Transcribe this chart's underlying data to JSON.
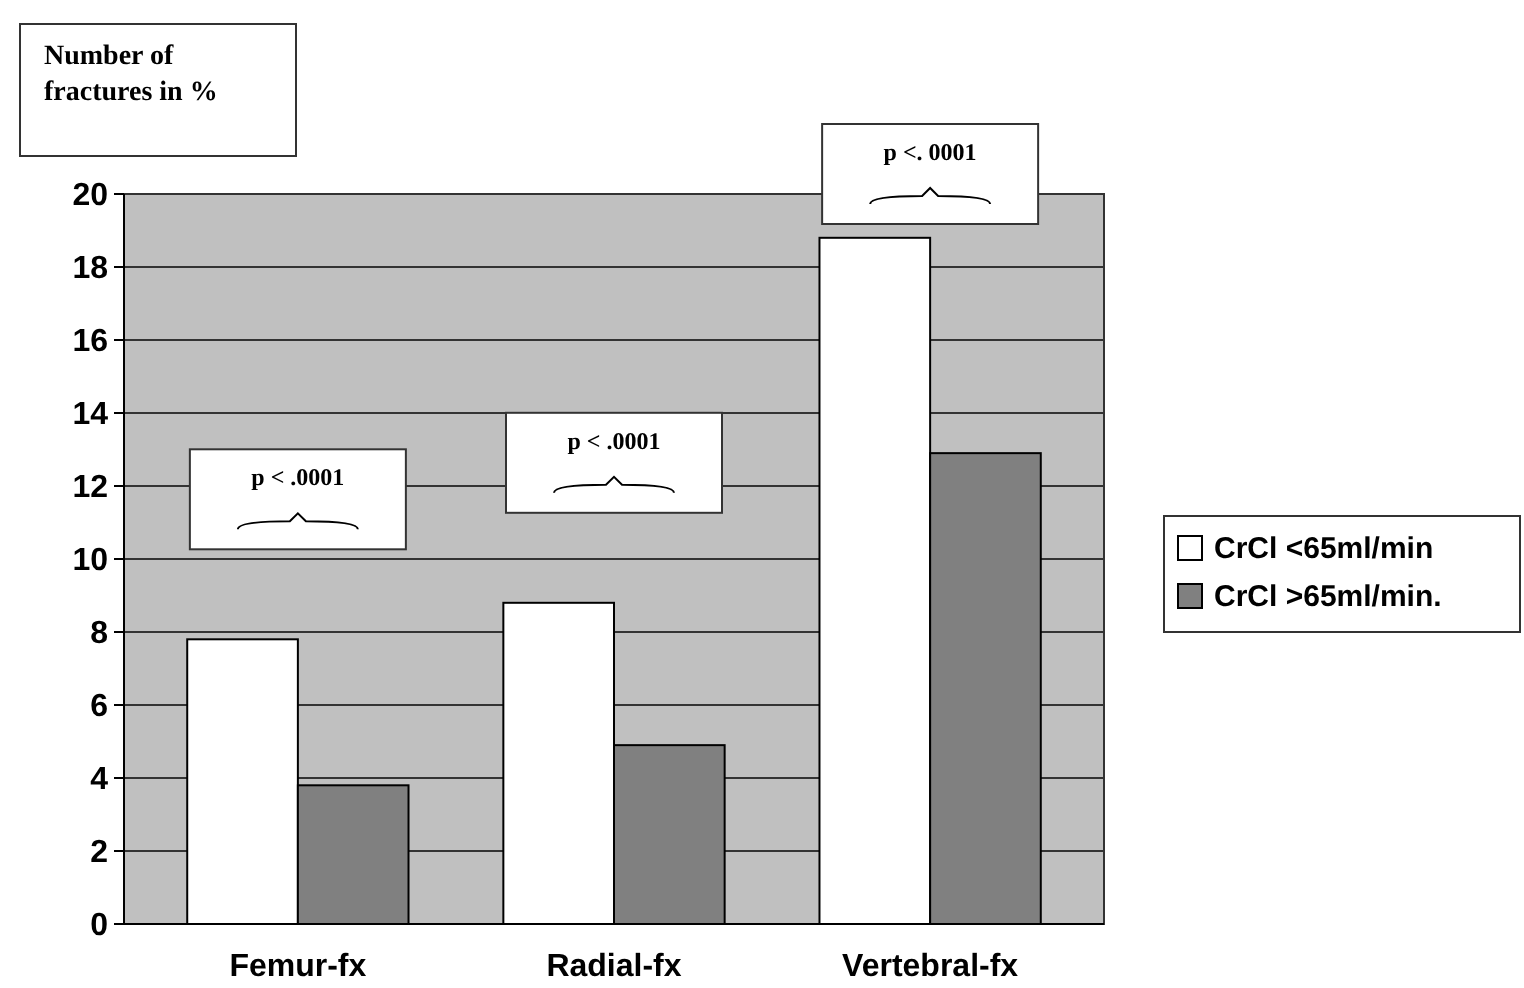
{
  "chart_data": {
    "type": "bar",
    "ylabel": "Number of fractures in %",
    "categories": [
      "Femur-fx",
      "Radial-fx",
      "Vertebral-fx"
    ],
    "series": [
      {
        "name": "CrCl <65ml/min",
        "color": "#ffffff",
        "values": [
          7.8,
          8.8,
          18.8
        ]
      },
      {
        "name": "CrCl >65ml/min.",
        "color": "#808080",
        "values": [
          3.8,
          4.9,
          12.9
        ]
      }
    ],
    "ylim": [
      0,
      20
    ],
    "yticks": [
      0,
      2,
      4,
      6,
      8,
      10,
      12,
      14,
      16,
      18,
      20
    ],
    "grid": "y",
    "legend": "right",
    "annotations": [
      "p < .0001",
      "p < .0001",
      "p <. 0001"
    ]
  }
}
